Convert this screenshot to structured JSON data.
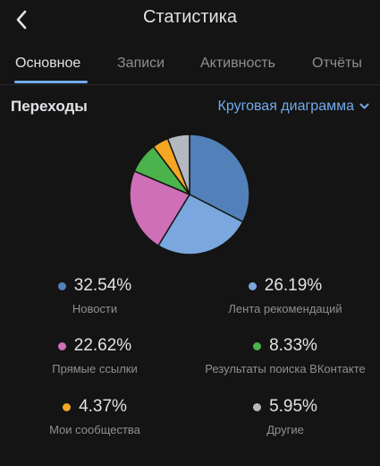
{
  "header": {
    "title": "Статистика",
    "back_icon": "chevron-left-icon"
  },
  "tabs": [
    {
      "label": "Основное",
      "active": true
    },
    {
      "label": "Записи",
      "active": false
    },
    {
      "label": "Активность",
      "active": false
    },
    {
      "label": "Отчёты",
      "active": false
    }
  ],
  "section": {
    "title": "Переходы",
    "chart_selector": "Круговая диаграмма",
    "selector_icon": "chevron-down-icon"
  },
  "chart_data": {
    "type": "pie",
    "title": "",
    "categories": [
      "Новости",
      "Лента рекомендаций",
      "Прямые ссылки",
      "Результаты поиска ВКонтакте",
      "Мои сообщества",
      "Другие"
    ],
    "values": [
      32.54,
      26.19,
      22.62,
      8.33,
      4.37,
      5.95
    ],
    "colors": [
      "#5181b8",
      "#7aa7de",
      "#cf6fb8",
      "#4bb34b",
      "#f5a623",
      "#b4b9c0"
    ],
    "labels": [
      "32.54%",
      "26.19%",
      "22.62%",
      "8.33%",
      "4.37%",
      "5.95%"
    ],
    "legend": "below"
  }
}
